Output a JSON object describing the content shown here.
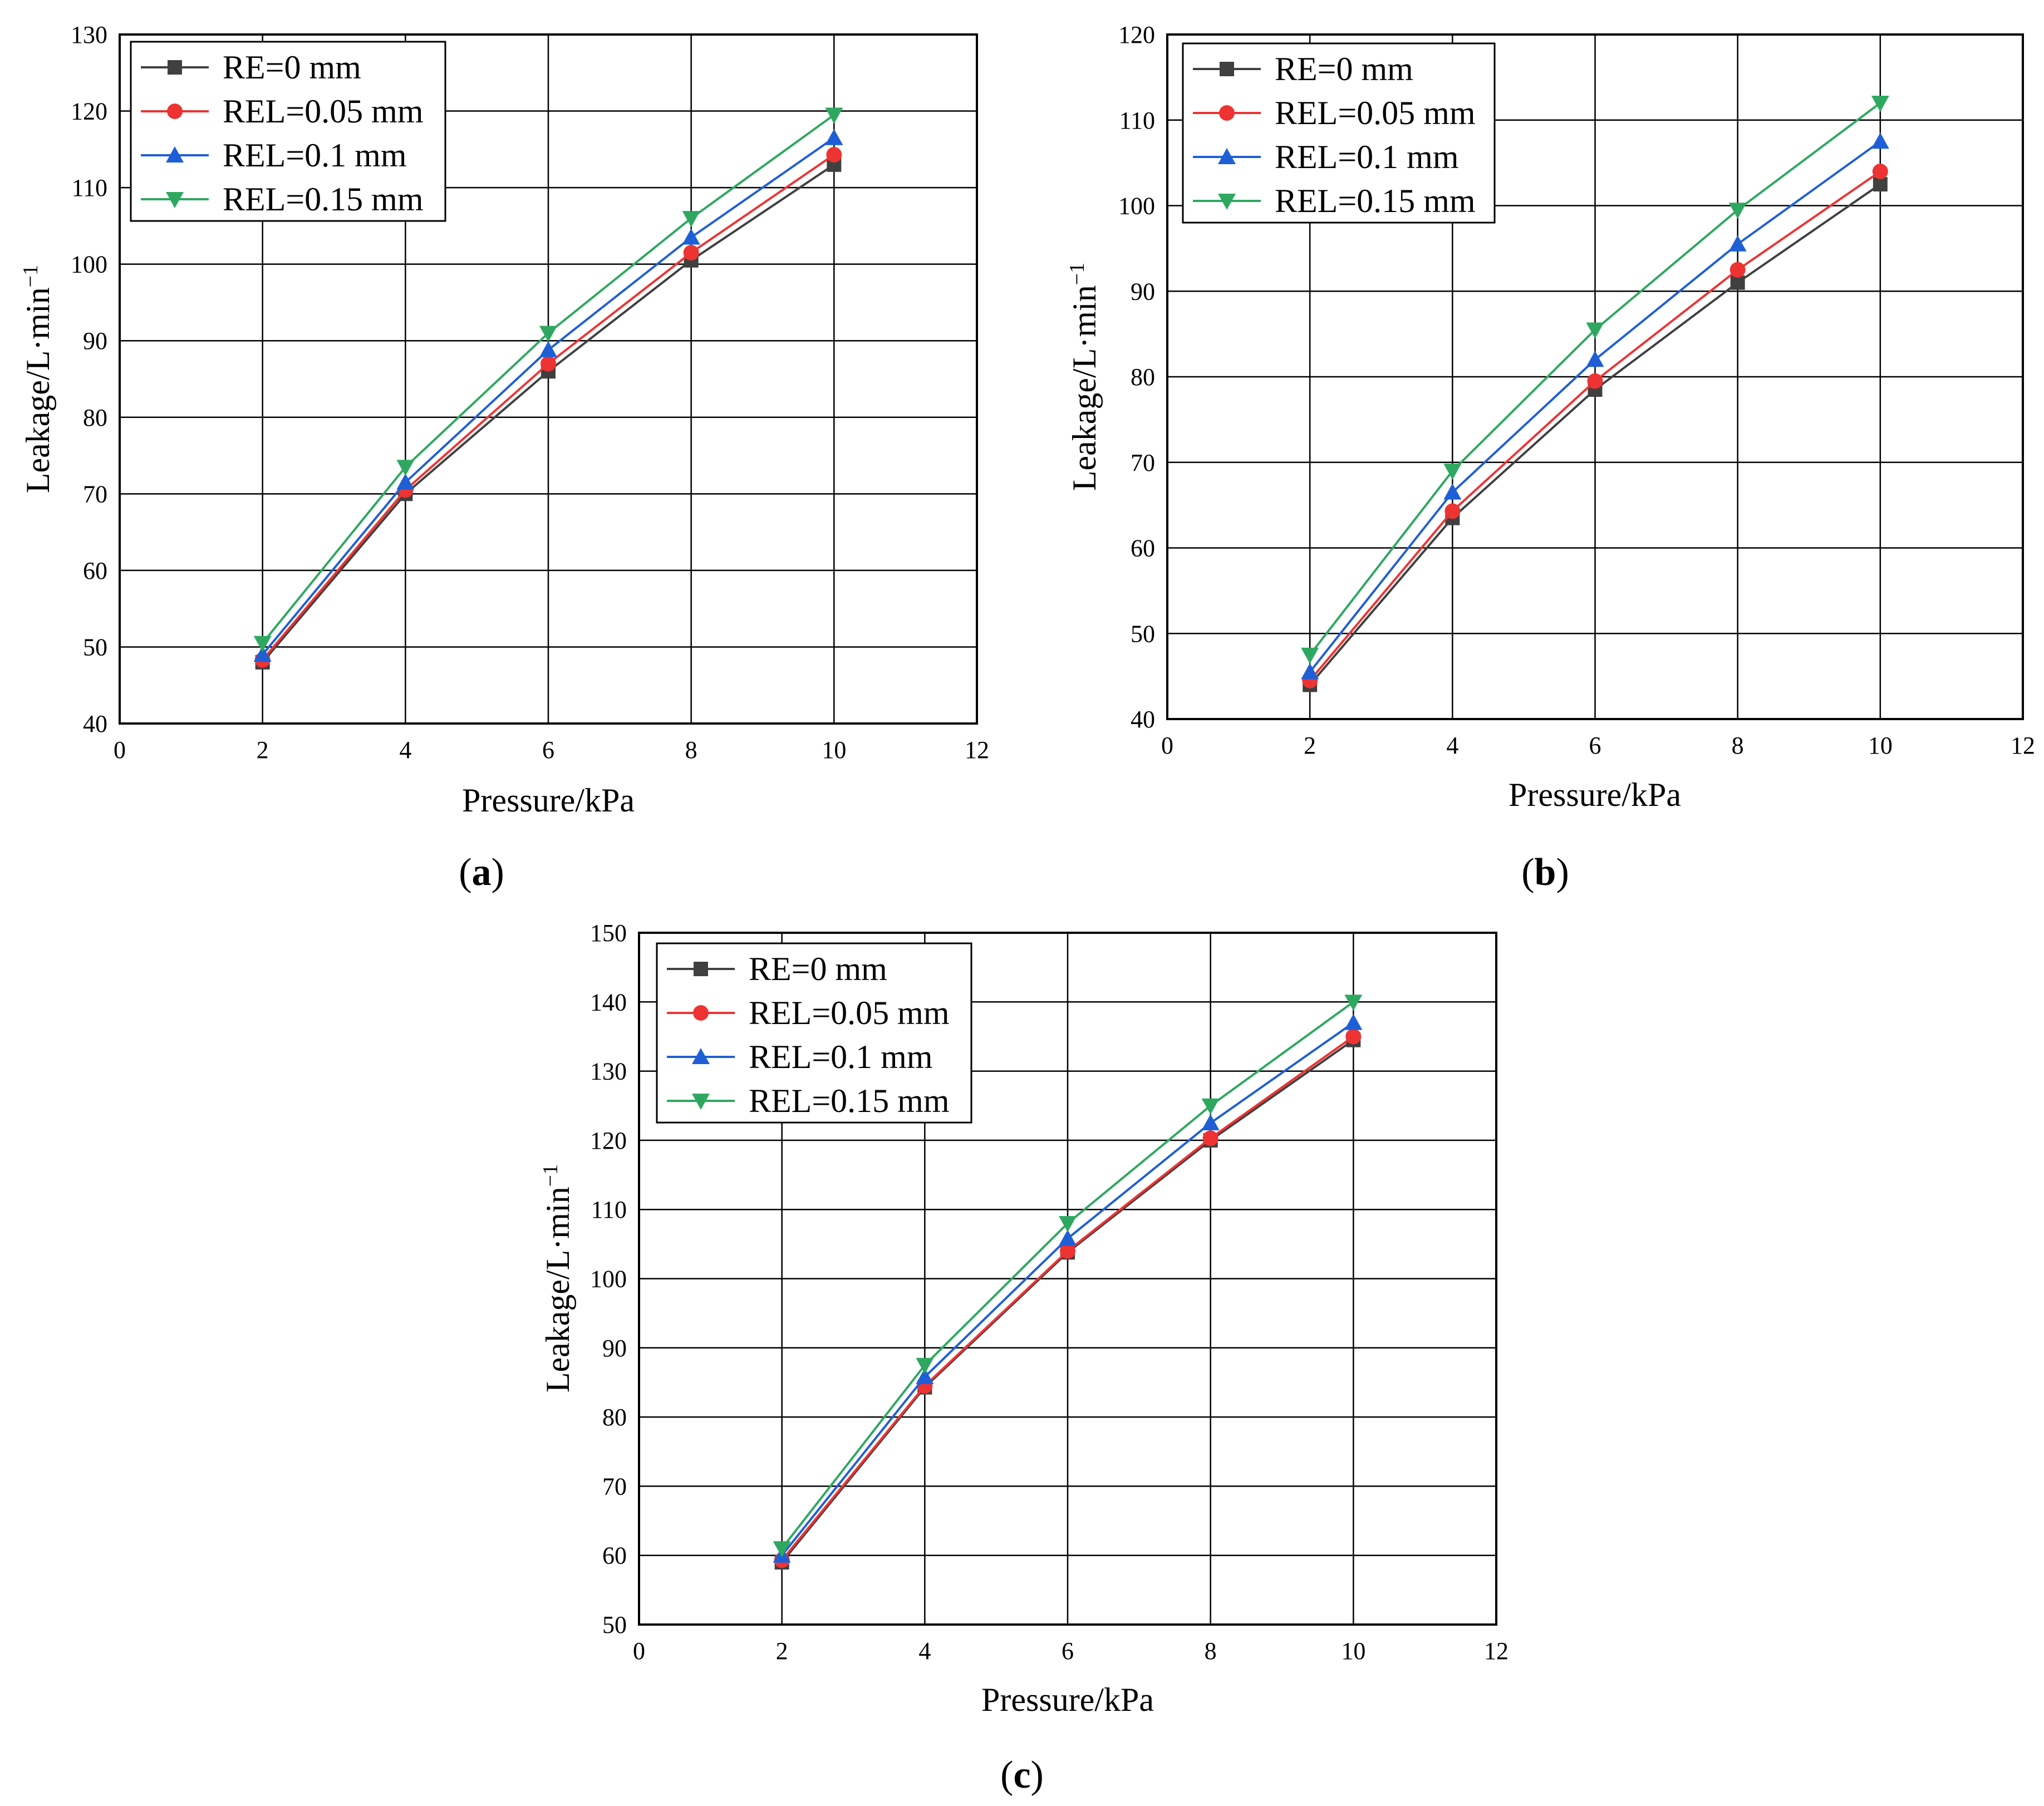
{
  "chart_data": [
    {
      "panel": "a",
      "type": "line",
      "caption": {
        "open": "(",
        "letter": "a",
        "close": ")"
      },
      "xlabel": "Pressure/kPa",
      "ylabel": "Leakage/L·min",
      "ylabel_sup": "−1",
      "xlim": [
        0,
        12
      ],
      "ylim": [
        40,
        130
      ],
      "xticks": [
        "0",
        "2",
        "4",
        "6",
        "8",
        "10",
        "12"
      ],
      "yticks": [
        "40",
        "50",
        "60",
        "70",
        "80",
        "90",
        "100",
        "110",
        "120",
        "130"
      ],
      "grid": true,
      "legend_position": "top-left",
      "x": [
        2,
        4,
        6,
        8,
        10
      ],
      "series": [
        {
          "name": "RE=0 mm",
          "marker": "square",
          "color": "#404040",
          "values": [
            48,
            70,
            86,
            100.5,
            113
          ]
        },
        {
          "name": "REL=0.05 mm",
          "marker": "circle",
          "color": "#ee3333",
          "values": [
            48.3,
            70.5,
            87,
            101.5,
            114.3
          ]
        },
        {
          "name": "REL=0.1 mm",
          "marker": "triangle-up",
          "color": "#1f5fd6",
          "values": [
            49,
            71.5,
            88.8,
            103.5,
            116.5
          ]
        },
        {
          "name": "REL=0.15 mm",
          "marker": "triangle-down",
          "color": "#2ea860",
          "values": [
            50.5,
            73.5,
            91,
            106,
            119.5
          ]
        }
      ]
    },
    {
      "panel": "b",
      "type": "line",
      "caption": {
        "open": "(",
        "letter": "b",
        "close": ")"
      },
      "xlabel": "Pressure/kPa",
      "ylabel": "Leakage/L·min",
      "ylabel_sup": "−1",
      "xlim": [
        0,
        12
      ],
      "ylim": [
        40,
        120
      ],
      "xticks": [
        "0",
        "2",
        "4",
        "6",
        "8",
        "10",
        "12"
      ],
      "yticks": [
        "40",
        "50",
        "60",
        "70",
        "80",
        "90",
        "100",
        "110",
        "120"
      ],
      "grid": true,
      "legend_position": "top-left",
      "x": [
        2,
        4,
        6,
        8,
        10
      ],
      "series": [
        {
          "name": "RE=0 mm",
          "marker": "square",
          "color": "#404040",
          "values": [
            44,
            63.5,
            78.5,
            91,
            102.5
          ]
        },
        {
          "name": "REL=0.05 mm",
          "marker": "circle",
          "color": "#ee3333",
          "values": [
            44.5,
            64.3,
            79.5,
            92.5,
            104
          ]
        },
        {
          "name": "REL=0.1 mm",
          "marker": "triangle-up",
          "color": "#1f5fd6",
          "values": [
            45.5,
            66.5,
            82,
            95.5,
            107.5
          ]
        },
        {
          "name": "REL=0.15 mm",
          "marker": "triangle-down",
          "color": "#2ea860",
          "values": [
            47.5,
            69,
            85.5,
            99.5,
            112
          ]
        }
      ]
    },
    {
      "panel": "c",
      "type": "line",
      "caption": {
        "open": "(",
        "letter": "c",
        "close": ")"
      },
      "xlabel": "Pressure/kPa",
      "ylabel": "Leakage/L·min",
      "ylabel_sup": "−1",
      "xlim": [
        0,
        12
      ],
      "ylim": [
        50,
        150
      ],
      "xticks": [
        "0",
        "2",
        "4",
        "6",
        "8",
        "10",
        "12"
      ],
      "yticks": [
        "50",
        "60",
        "70",
        "80",
        "90",
        "100",
        "110",
        "120",
        "130",
        "140",
        "150"
      ],
      "grid": true,
      "legend_position": "top-left",
      "x": [
        2,
        4,
        6,
        8,
        10
      ],
      "series": [
        {
          "name": "RE=0 mm",
          "marker": "square",
          "color": "#404040",
          "values": [
            59,
            84.3,
            103.8,
            120,
            134.5
          ]
        },
        {
          "name": "REL=0.05 mm",
          "marker": "circle",
          "color": "#ee3333",
          "values": [
            59.3,
            84.5,
            104,
            120.3,
            135
          ]
        },
        {
          "name": "REL=0.1 mm",
          "marker": "triangle-up",
          "color": "#1f5fd6",
          "values": [
            60,
            85.8,
            105.8,
            122.5,
            137
          ]
        },
        {
          "name": "REL=0.15 mm",
          "marker": "triangle-down",
          "color": "#2ea860",
          "values": [
            61,
            87.5,
            108,
            125,
            140
          ]
        }
      ]
    }
  ]
}
